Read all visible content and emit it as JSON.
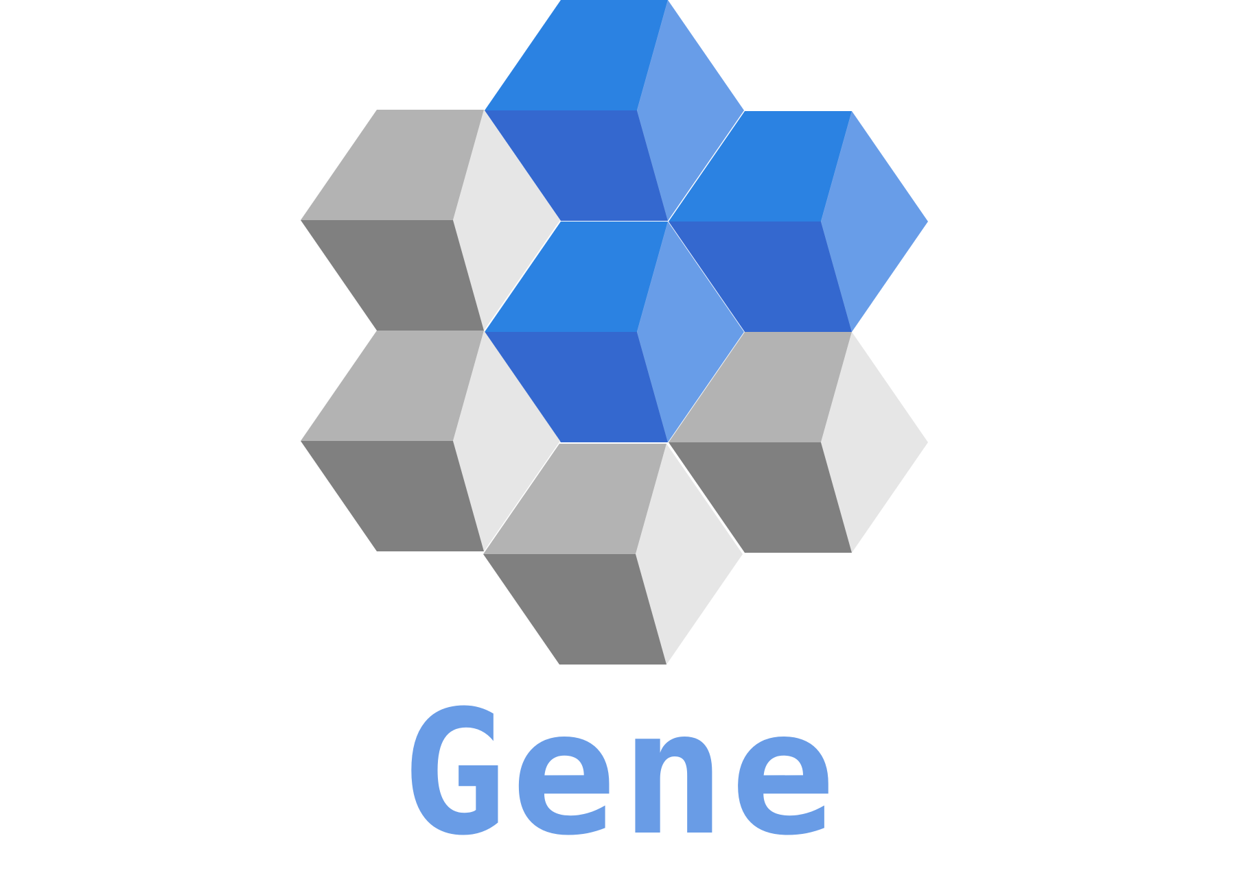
{
  "brand": {
    "wordmark": "Gene"
  },
  "colors": {
    "background": "#ffffff",
    "blue_top": "#2b82e2",
    "blue_right": "#689de8",
    "blue_left": "#3468cf",
    "gray_top": "#b3b3b3",
    "gray_right": "#e6e6e6",
    "gray_left": "#808080",
    "wordmark": "#699ce6"
  },
  "logo": {
    "icon": "isometric-cubes-logo-icon",
    "cubes": [
      {
        "name": "cube-top-center",
        "tone": "blue"
      },
      {
        "name": "cube-upper-left",
        "tone": "gray"
      },
      {
        "name": "cube-upper-right",
        "tone": "blue"
      },
      {
        "name": "cube-center",
        "tone": "blue"
      },
      {
        "name": "cube-lower-left",
        "tone": "gray"
      },
      {
        "name": "cube-lower-right",
        "tone": "gray"
      },
      {
        "name": "cube-bottom-center",
        "tone": "gray"
      }
    ]
  }
}
